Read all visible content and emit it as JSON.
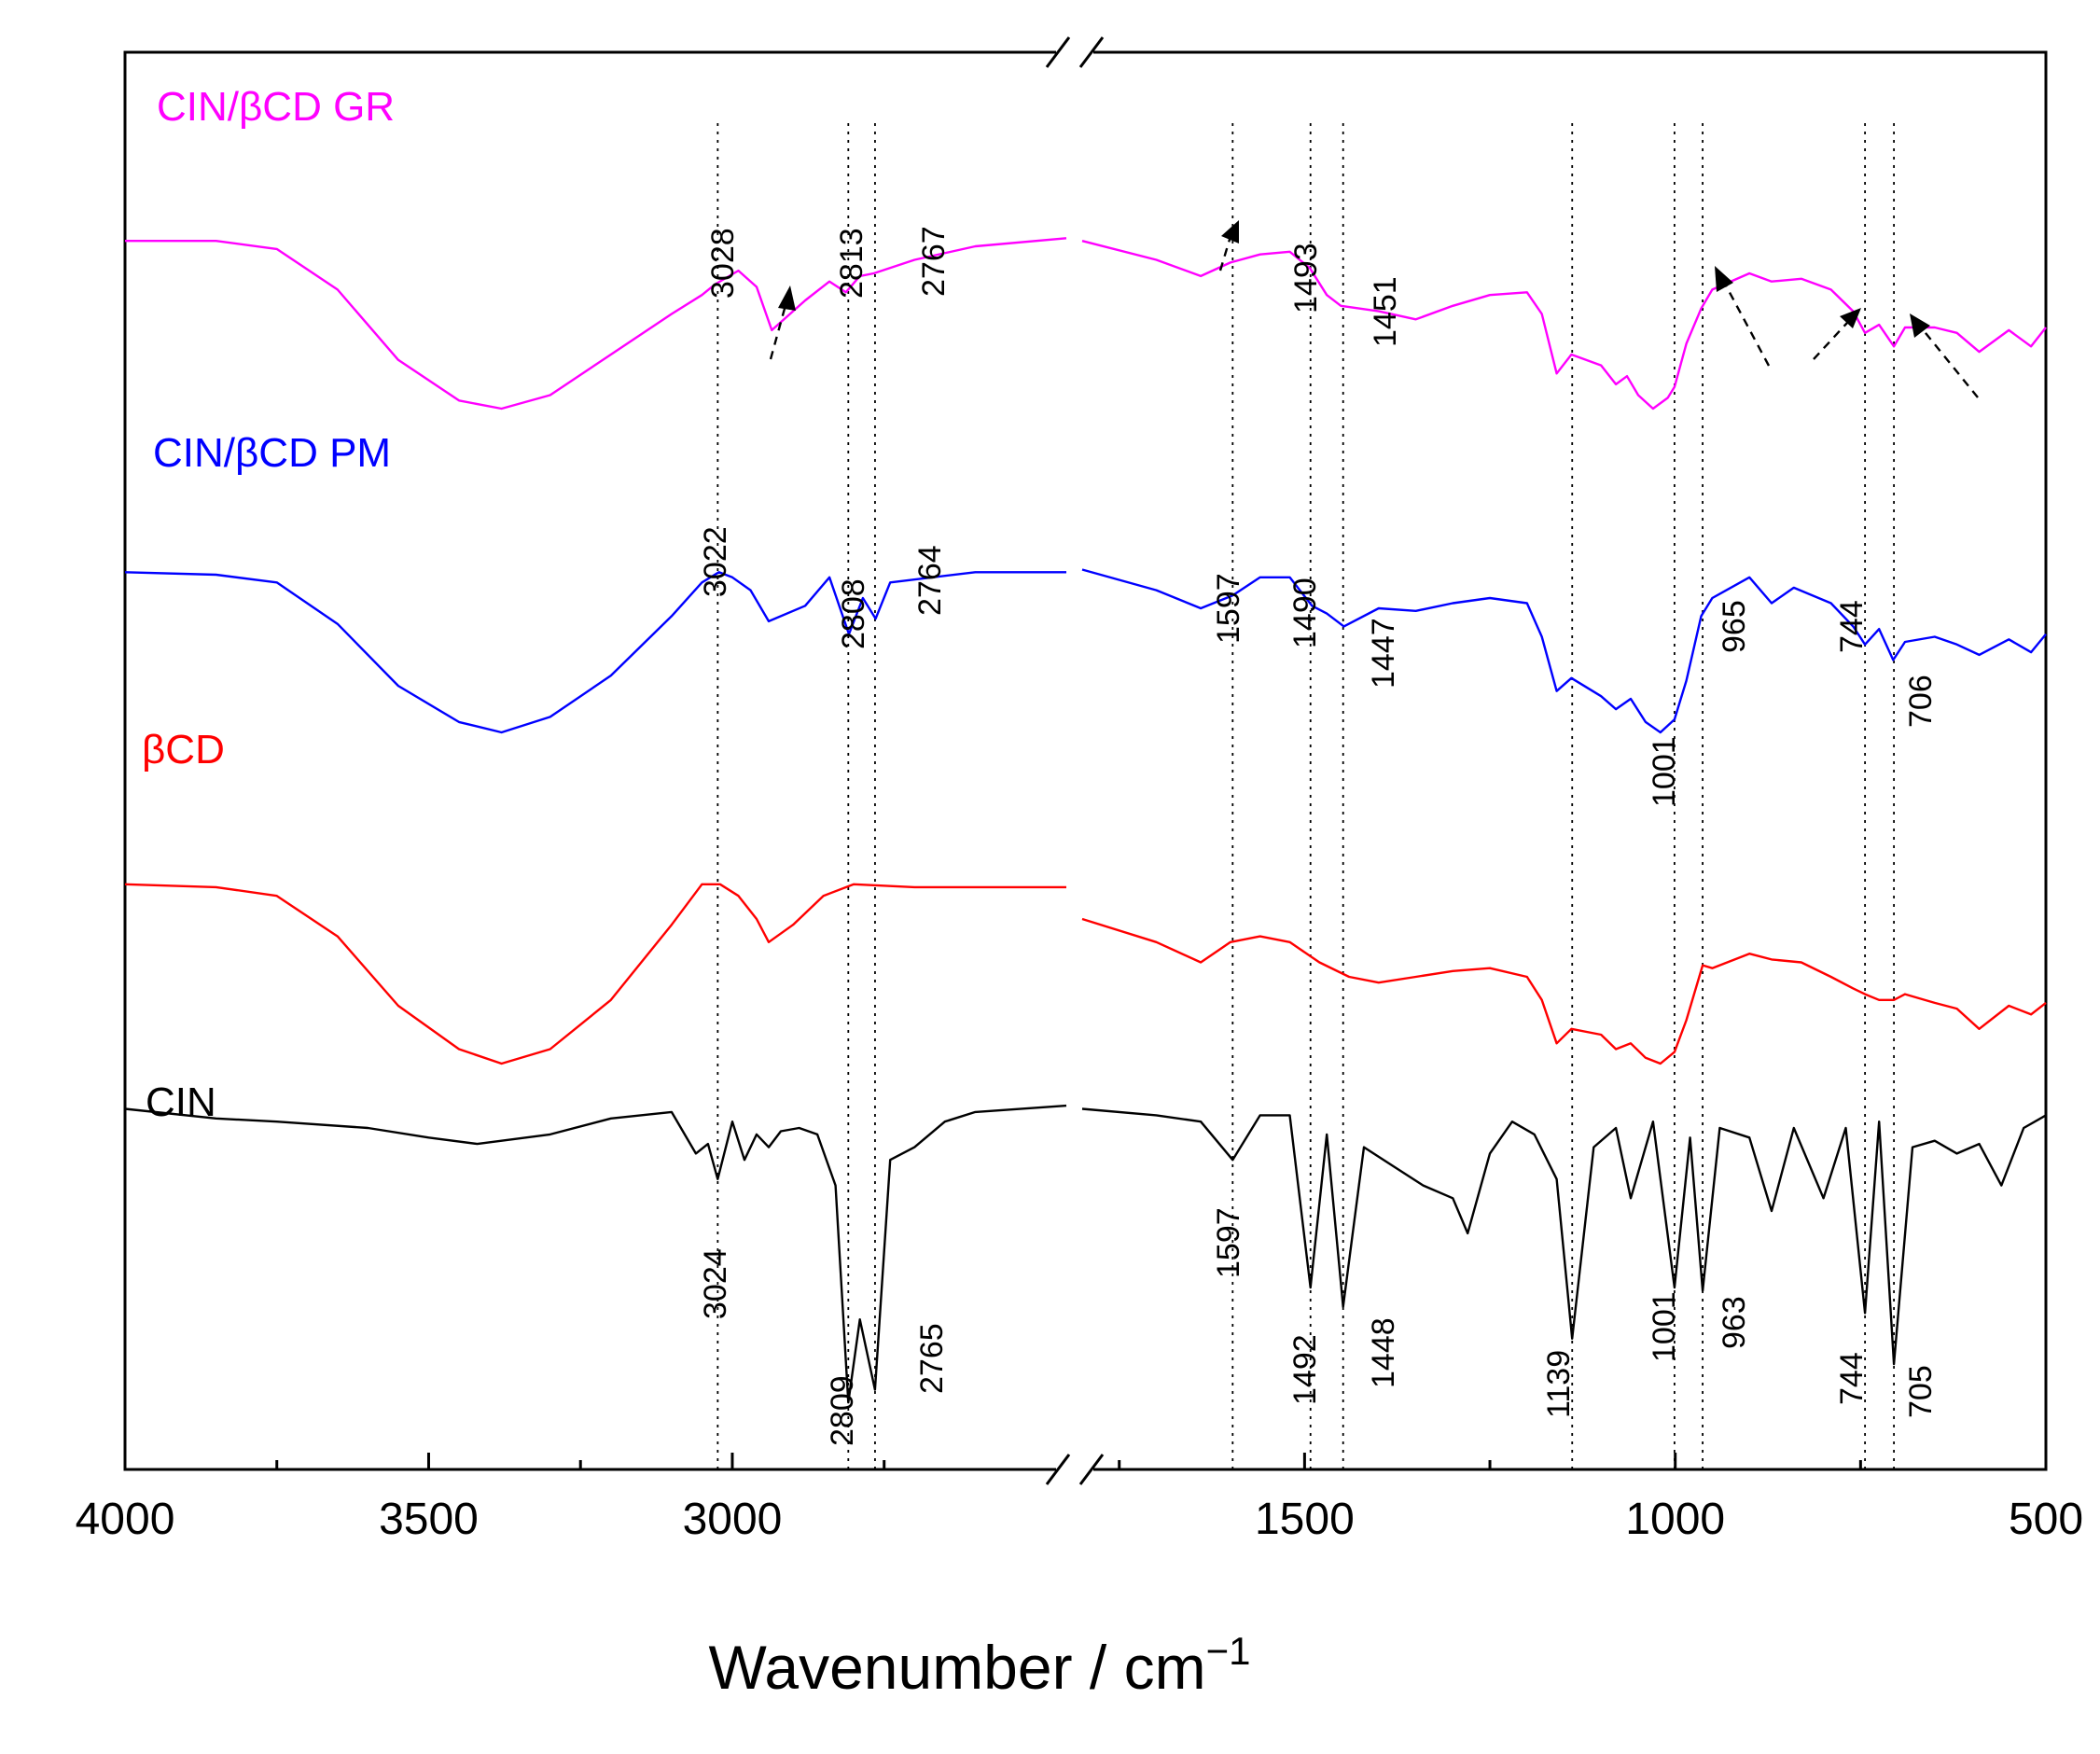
{
  "chart_data": {
    "type": "line",
    "title": "",
    "xlabel": "Wavenumber / cm",
    "xlabel_superscript": "−1",
    "xlim": [
      4000,
      500
    ],
    "axis_break": [
      2450,
      1800
    ],
    "x_tick_labels": [
      "4000",
      "3500",
      "3000",
      "1500",
      "1000",
      "500"
    ],
    "guide_lines": [
      3024,
      2809,
      2765,
      1597,
      1492,
      1448,
      1139,
      1001,
      963,
      744,
      705
    ],
    "series": [
      {
        "name": "CIN/βCD GR",
        "color": "#ff00ff",
        "segment1": [
          [
            4000,
            0.62
          ],
          [
            3850,
            0.62
          ],
          [
            3750,
            0.59
          ],
          [
            3650,
            0.44
          ],
          [
            3550,
            0.18
          ],
          [
            3450,
            0.03
          ],
          [
            3380,
            0.0
          ],
          [
            3300,
            0.05
          ],
          [
            3200,
            0.2
          ],
          [
            3100,
            0.35
          ],
          [
            3050,
            0.42
          ],
          [
            3028,
            0.46
          ],
          [
            2990,
            0.51
          ],
          [
            2960,
            0.45
          ],
          [
            2935,
            0.29
          ],
          [
            2880,
            0.4
          ],
          [
            2840,
            0.47
          ],
          [
            2813,
            0.43
          ],
          [
            2790,
            0.49
          ],
          [
            2767,
            0.5
          ],
          [
            2700,
            0.55
          ],
          [
            2600,
            0.6
          ],
          [
            2450,
            0.63
          ]
        ],
        "segment2": [
          [
            1800,
            0.62
          ],
          [
            1700,
            0.55
          ],
          [
            1640,
            0.49
          ],
          [
            1600,
            0.54
          ],
          [
            1560,
            0.57
          ],
          [
            1520,
            0.58
          ],
          [
            1493,
            0.52
          ],
          [
            1470,
            0.42
          ],
          [
            1451,
            0.38
          ],
          [
            1400,
            0.36
          ],
          [
            1350,
            0.33
          ],
          [
            1300,
            0.38
          ],
          [
            1250,
            0.42
          ],
          [
            1200,
            0.43
          ],
          [
            1180,
            0.35
          ],
          [
            1160,
            0.13
          ],
          [
            1140,
            0.2
          ],
          [
            1100,
            0.16
          ],
          [
            1080,
            0.09
          ],
          [
            1065,
            0.12
          ],
          [
            1050,
            0.05
          ],
          [
            1030,
            0.0
          ],
          [
            1010,
            0.04
          ],
          [
            1001,
            0.08
          ],
          [
            985,
            0.24
          ],
          [
            965,
            0.37
          ],
          [
            950,
            0.44
          ],
          [
            900,
            0.5
          ],
          [
            870,
            0.47
          ],
          [
            830,
            0.48
          ],
          [
            790,
            0.44
          ],
          [
            760,
            0.36
          ],
          [
            744,
            0.28
          ],
          [
            725,
            0.31
          ],
          [
            705,
            0.23
          ],
          [
            690,
            0.3
          ],
          [
            650,
            0.3
          ],
          [
            620,
            0.28
          ],
          [
            590,
            0.21
          ],
          [
            550,
            0.29
          ],
          [
            520,
            0.23
          ],
          [
            500,
            0.3
          ]
        ]
      },
      {
        "name": "CIN/βCD PM",
        "color": "#0000ff",
        "segment1": [
          [
            4000,
            0.62
          ],
          [
            3850,
            0.61
          ],
          [
            3750,
            0.58
          ],
          [
            3650,
            0.42
          ],
          [
            3550,
            0.18
          ],
          [
            3450,
            0.04
          ],
          [
            3380,
            0.0
          ],
          [
            3300,
            0.06
          ],
          [
            3200,
            0.22
          ],
          [
            3100,
            0.45
          ],
          [
            3050,
            0.58
          ],
          [
            3022,
            0.62
          ],
          [
            3000,
            0.6
          ],
          [
            2970,
            0.55
          ],
          [
            2940,
            0.43
          ],
          [
            2880,
            0.49
          ],
          [
            2840,
            0.6
          ],
          [
            2808,
            0.38
          ],
          [
            2785,
            0.52
          ],
          [
            2764,
            0.44
          ],
          [
            2740,
            0.58
          ],
          [
            2600,
            0.62
          ],
          [
            2450,
            0.62
          ]
        ],
        "segment2": [
          [
            1800,
            0.63
          ],
          [
            1700,
            0.55
          ],
          [
            1640,
            0.48
          ],
          [
            1597,
            0.53
          ],
          [
            1560,
            0.6
          ],
          [
            1520,
            0.6
          ],
          [
            1490,
            0.49
          ],
          [
            1470,
            0.46
          ],
          [
            1447,
            0.41
          ],
          [
            1400,
            0.48
          ],
          [
            1350,
            0.47
          ],
          [
            1300,
            0.5
          ],
          [
            1250,
            0.52
          ],
          [
            1200,
            0.5
          ],
          [
            1180,
            0.37
          ],
          [
            1160,
            0.16
          ],
          [
            1140,
            0.21
          ],
          [
            1100,
            0.14
          ],
          [
            1080,
            0.09
          ],
          [
            1060,
            0.13
          ],
          [
            1040,
            0.04
          ],
          [
            1020,
            0.0
          ],
          [
            1001,
            0.05
          ],
          [
            985,
            0.2
          ],
          [
            965,
            0.45
          ],
          [
            950,
            0.52
          ],
          [
            900,
            0.6
          ],
          [
            870,
            0.5
          ],
          [
            840,
            0.56
          ],
          [
            790,
            0.5
          ],
          [
            760,
            0.41
          ],
          [
            744,
            0.34
          ],
          [
            725,
            0.4
          ],
          [
            706,
            0.28
          ],
          [
            690,
            0.35
          ],
          [
            650,
            0.37
          ],
          [
            620,
            0.34
          ],
          [
            590,
            0.3
          ],
          [
            550,
            0.36
          ],
          [
            520,
            0.31
          ],
          [
            500,
            0.38
          ]
        ]
      },
      {
        "name": "βCD",
        "color": "#ff0000",
        "segment1": [
          [
            4000,
            0.62
          ],
          [
            3850,
            0.61
          ],
          [
            3750,
            0.58
          ],
          [
            3650,
            0.44
          ],
          [
            3550,
            0.2
          ],
          [
            3450,
            0.05
          ],
          [
            3380,
            0.0
          ],
          [
            3300,
            0.05
          ],
          [
            3200,
            0.22
          ],
          [
            3100,
            0.48
          ],
          [
            3050,
            0.62
          ],
          [
            3020,
            0.62
          ],
          [
            2990,
            0.58
          ],
          [
            2960,
            0.5
          ],
          [
            2940,
            0.42
          ],
          [
            2900,
            0.48
          ],
          [
            2850,
            0.58
          ],
          [
            2800,
            0.62
          ],
          [
            2700,
            0.61
          ],
          [
            2600,
            0.61
          ],
          [
            2450,
            0.61
          ]
        ],
        "segment2": [
          [
            1800,
            0.5
          ],
          [
            1700,
            0.42
          ],
          [
            1640,
            0.35
          ],
          [
            1600,
            0.42
          ],
          [
            1560,
            0.44
          ],
          [
            1520,
            0.42
          ],
          [
            1480,
            0.35
          ],
          [
            1440,
            0.3
          ],
          [
            1400,
            0.28
          ],
          [
            1350,
            0.3
          ],
          [
            1300,
            0.32
          ],
          [
            1250,
            0.33
          ],
          [
            1200,
            0.3
          ],
          [
            1180,
            0.22
          ],
          [
            1160,
            0.07
          ],
          [
            1140,
            0.12
          ],
          [
            1100,
            0.1
          ],
          [
            1080,
            0.05
          ],
          [
            1060,
            0.07
          ],
          [
            1040,
            0.02
          ],
          [
            1020,
            0.0
          ],
          [
            1001,
            0.04
          ],
          [
            985,
            0.15
          ],
          [
            963,
            0.34
          ],
          [
            950,
            0.33
          ],
          [
            900,
            0.38
          ],
          [
            870,
            0.36
          ],
          [
            830,
            0.35
          ],
          [
            790,
            0.3
          ],
          [
            760,
            0.26
          ],
          [
            744,
            0.24
          ],
          [
            725,
            0.22
          ],
          [
            705,
            0.22
          ],
          [
            690,
            0.24
          ],
          [
            650,
            0.21
          ],
          [
            620,
            0.19
          ],
          [
            590,
            0.12
          ],
          [
            550,
            0.2
          ],
          [
            520,
            0.17
          ],
          [
            500,
            0.21
          ]
        ]
      },
      {
        "name": "CIN",
        "color": "#000000",
        "segment1": [
          [
            4000,
            0.94
          ],
          [
            3850,
            0.91
          ],
          [
            3750,
            0.9
          ],
          [
            3600,
            0.88
          ],
          [
            3500,
            0.85
          ],
          [
            3420,
            0.83
          ],
          [
            3300,
            0.86
          ],
          [
            3200,
            0.91
          ],
          [
            3100,
            0.93
          ],
          [
            3060,
            0.8
          ],
          [
            3040,
            0.83
          ],
          [
            3024,
            0.72
          ],
          [
            3000,
            0.9
          ],
          [
            2980,
            0.78
          ],
          [
            2960,
            0.86
          ],
          [
            2940,
            0.82
          ],
          [
            2920,
            0.87
          ],
          [
            2890,
            0.88
          ],
          [
            2860,
            0.86
          ],
          [
            2830,
            0.7
          ],
          [
            2809,
            0.02
          ],
          [
            2790,
            0.28
          ],
          [
            2765,
            0.06
          ],
          [
            2740,
            0.78
          ],
          [
            2700,
            0.82
          ],
          [
            2650,
            0.9
          ],
          [
            2600,
            0.93
          ],
          [
            2450,
            0.95
          ]
        ],
        "segment2": [
          [
            1800,
            0.94
          ],
          [
            1700,
            0.92
          ],
          [
            1640,
            0.9
          ],
          [
            1597,
            0.78
          ],
          [
            1560,
            0.92
          ],
          [
            1520,
            0.92
          ],
          [
            1492,
            0.38
          ],
          [
            1470,
            0.86
          ],
          [
            1448,
            0.32
          ],
          [
            1420,
            0.82
          ],
          [
            1380,
            0.76
          ],
          [
            1340,
            0.7
          ],
          [
            1300,
            0.66
          ],
          [
            1280,
            0.55
          ],
          [
            1250,
            0.8
          ],
          [
            1220,
            0.9
          ],
          [
            1190,
            0.86
          ],
          [
            1160,
            0.72
          ],
          [
            1139,
            0.22
          ],
          [
            1110,
            0.82
          ],
          [
            1080,
            0.88
          ],
          [
            1060,
            0.66
          ],
          [
            1030,
            0.9
          ],
          [
            1001,
            0.38
          ],
          [
            980,
            0.85
          ],
          [
            963,
            0.37
          ],
          [
            940,
            0.88
          ],
          [
            900,
            0.85
          ],
          [
            870,
            0.62
          ],
          [
            840,
            0.88
          ],
          [
            800,
            0.66
          ],
          [
            770,
            0.88
          ],
          [
            744,
            0.3
          ],
          [
            725,
            0.9
          ],
          [
            705,
            0.14
          ],
          [
            680,
            0.82
          ],
          [
            650,
            0.84
          ],
          [
            620,
            0.8
          ],
          [
            590,
            0.83
          ],
          [
            560,
            0.7
          ],
          [
            530,
            0.88
          ],
          [
            500,
            0.92
          ]
        ]
      }
    ],
    "peak_labels": {
      "gr": [
        "3028",
        "2813",
        "2767",
        "1493",
        "1451"
      ],
      "pm": [
        "3022",
        "2808",
        "2764",
        "1597",
        "1490",
        "1447",
        "1001",
        "965",
        "744",
        "706"
      ],
      "cin": [
        "3024",
        "2809",
        "2765",
        "1597",
        "1492",
        "1448",
        "1139",
        "1001",
        "963",
        "744",
        "705"
      ]
    }
  }
}
